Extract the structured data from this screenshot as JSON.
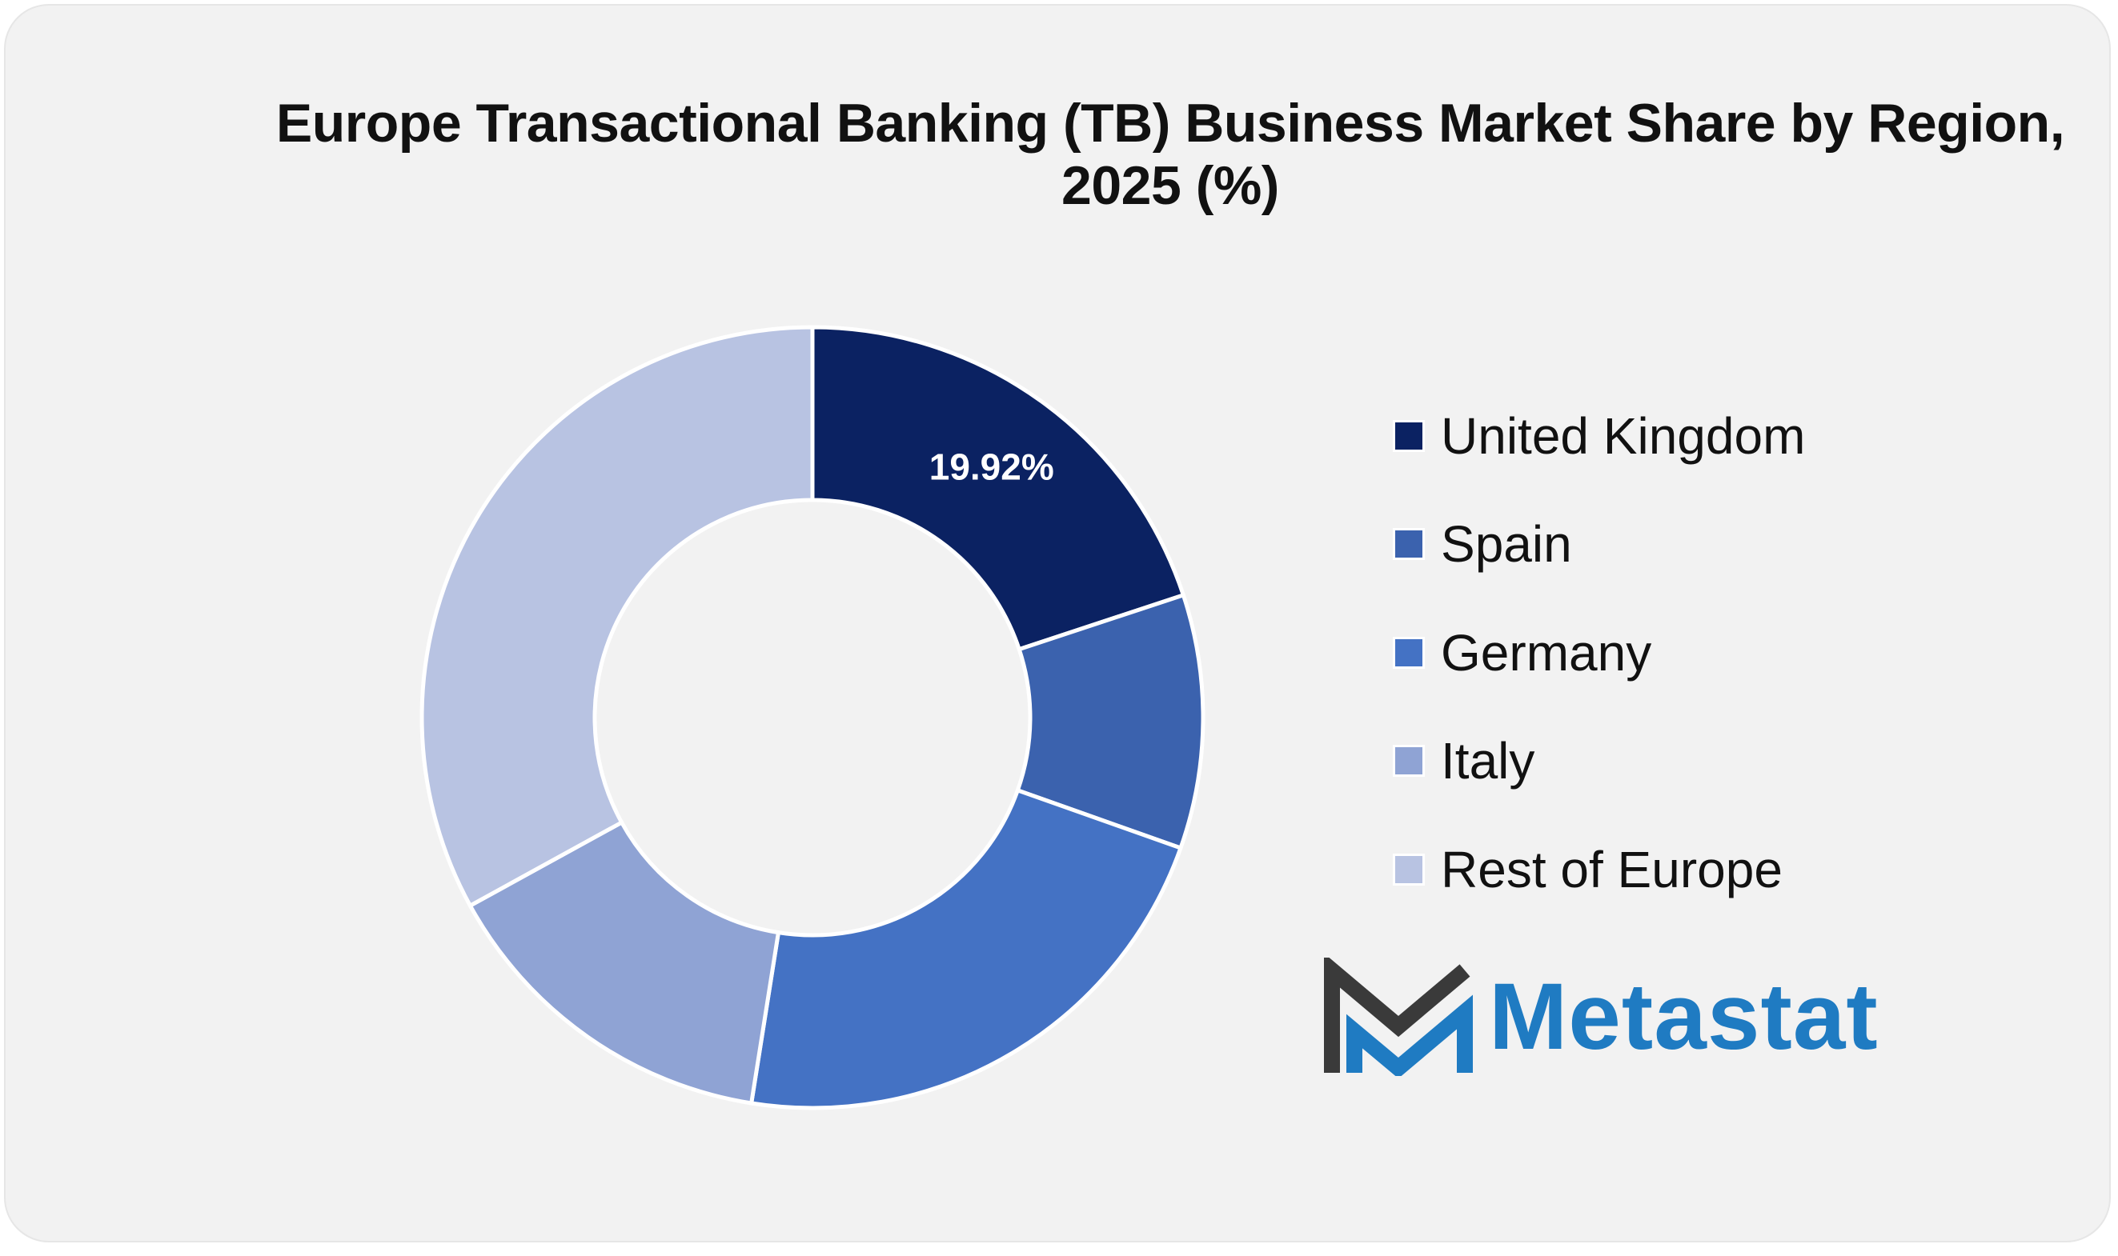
{
  "chart_data": {
    "type": "pie",
    "title": "Europe Transactional Banking (TB) Business Market Share by Region, 2025 (%)",
    "categories": [
      "United Kingdom",
      "Spain",
      "Germany",
      "Italy",
      "Rest of Europe"
    ],
    "values": [
      19.92,
      10.5,
      22.08,
      14.5,
      33.0
    ],
    "data_labels": [
      "19.92%",
      "",
      "",
      "",
      ""
    ],
    "colors": [
      "#0b2262",
      "#3b62ae",
      "#4472c4",
      "#8fa3d4",
      "#b8c3e2"
    ],
    "donut": true,
    "legend_position": "right"
  },
  "logo": {
    "text": "Metastat",
    "icon": "metastat-m-logo"
  }
}
